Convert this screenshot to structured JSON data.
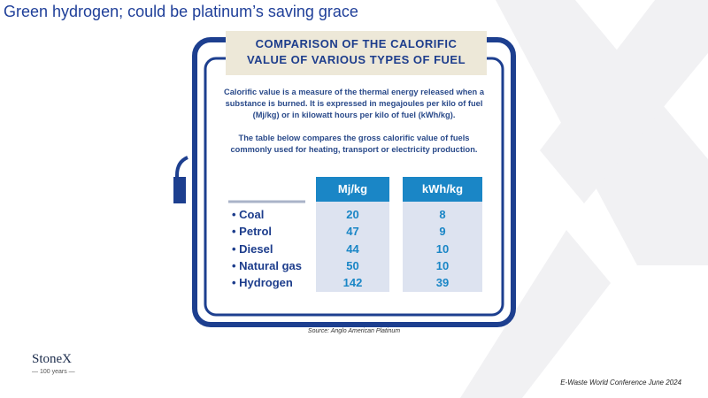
{
  "slide_title": "Green hydrogen; could be platinum’s saving grace",
  "infographic": {
    "heading": [
      "COMPARISON OF THE CALORIFIC",
      "VALUE OF VARIOUS TYPES OF FUEL"
    ],
    "paragraphs": [
      [
        "Calorific value is a measure of the thermal energy released when a",
        "substance is burned. It is expressed in megajoules per kilo of fuel",
        "(Mj/kg) or in kilowatt hours per kilo of fuel (kWh/kg)."
      ],
      [
        "The table below compares the gross calorific value of fuels",
        "commonly used for heating, transport or electricity production."
      ]
    ],
    "table": {
      "columns": [
        "Mj/kg",
        "kWh/kg"
      ],
      "rows": [
        [
          "Coal",
          20,
          8
        ],
        [
          "Petrol",
          47,
          9
        ],
        [
          "Diesel",
          44,
          10
        ],
        [
          "Natural gas",
          50,
          10
        ],
        [
          "Hydrogen",
          142,
          39
        ]
      ]
    }
  },
  "source": "Source: Anglo American Platinum",
  "logo": {
    "name": "StoneX",
    "tagline": "100 years"
  },
  "footer": "E-Waste World Conference June 2024"
}
